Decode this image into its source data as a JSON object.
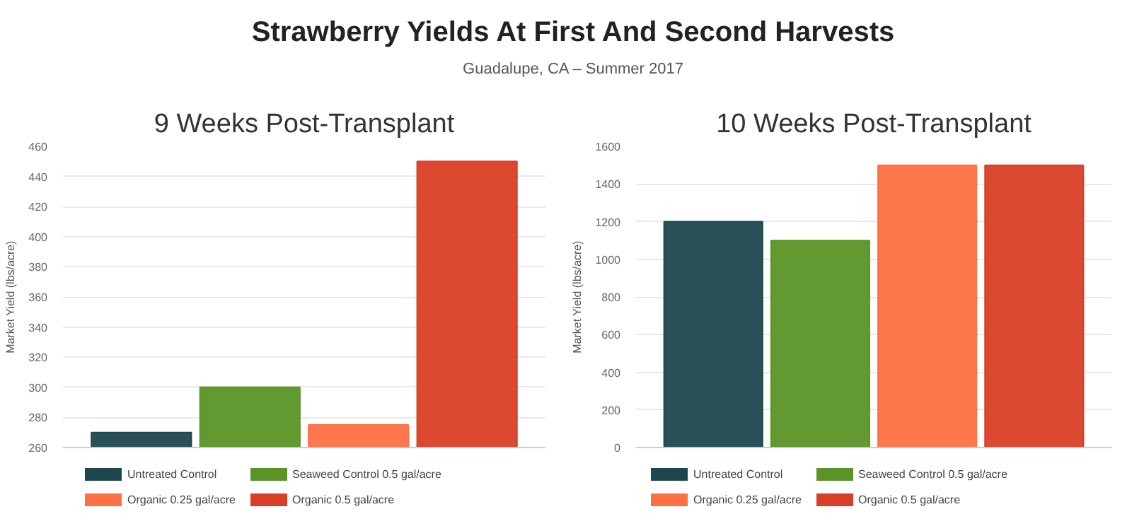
{
  "chart_data": [
    {
      "type": "other",
      "title": "Strawberry Yields At First And Second Harvests",
      "subtitle": "Guadalupe, CA – Summer 2017"
    },
    {
      "type": "bar",
      "title": "9 Weeks Post-Transplant",
      "ylabel": "Market Yield (lbs/acre)",
      "categories": [
        null
      ],
      "series": [
        {
          "name": "Untreated Control",
          "color": "#1e4650",
          "values": [
            270
          ]
        },
        {
          "name": "Seaweed Control 0.5 gal/acre",
          "color": "#5a9426",
          "values": [
            300
          ]
        },
        {
          "name": "Organic 0.25 gal/acre",
          "color": "#ff7043",
          "values": [
            275
          ]
        },
        {
          "name": "Organic 0.5 gal/acre",
          "color": "#d93f26",
          "values": [
            450
          ]
        }
      ],
      "ylim": [
        260,
        460
      ],
      "yticks": [
        260,
        280,
        300,
        320,
        340,
        360,
        380,
        400,
        420,
        440,
        460
      ],
      "grid": "y",
      "legend": "bottom",
      "tick_labels": "y"
    },
    {
      "type": "bar",
      "title": "10 Weeks Post-Transplant",
      "ylabel": "Market Yield (lbs/acre)",
      "categories": [
        null
      ],
      "series": [
        {
          "name": "Untreated Control",
          "color": "#1e4650",
          "values": [
            1200
          ]
        },
        {
          "name": "Seaweed Control 0.5 gal/acre",
          "color": "#5a9426",
          "values": [
            1100
          ]
        },
        {
          "name": "Organic 0.25 gal/acre",
          "color": "#ff7043",
          "values": [
            1500
          ]
        },
        {
          "name": "Organic 0.5 gal/acre",
          "color": "#d93f26",
          "values": [
            1500
          ]
        }
      ],
      "ylim": [
        0,
        1600
      ],
      "yticks": [
        0,
        200,
        400,
        600,
        800,
        1000,
        1200,
        1400,
        1600
      ],
      "grid": "y",
      "legend": "bottom",
      "tick_labels": "y"
    }
  ]
}
